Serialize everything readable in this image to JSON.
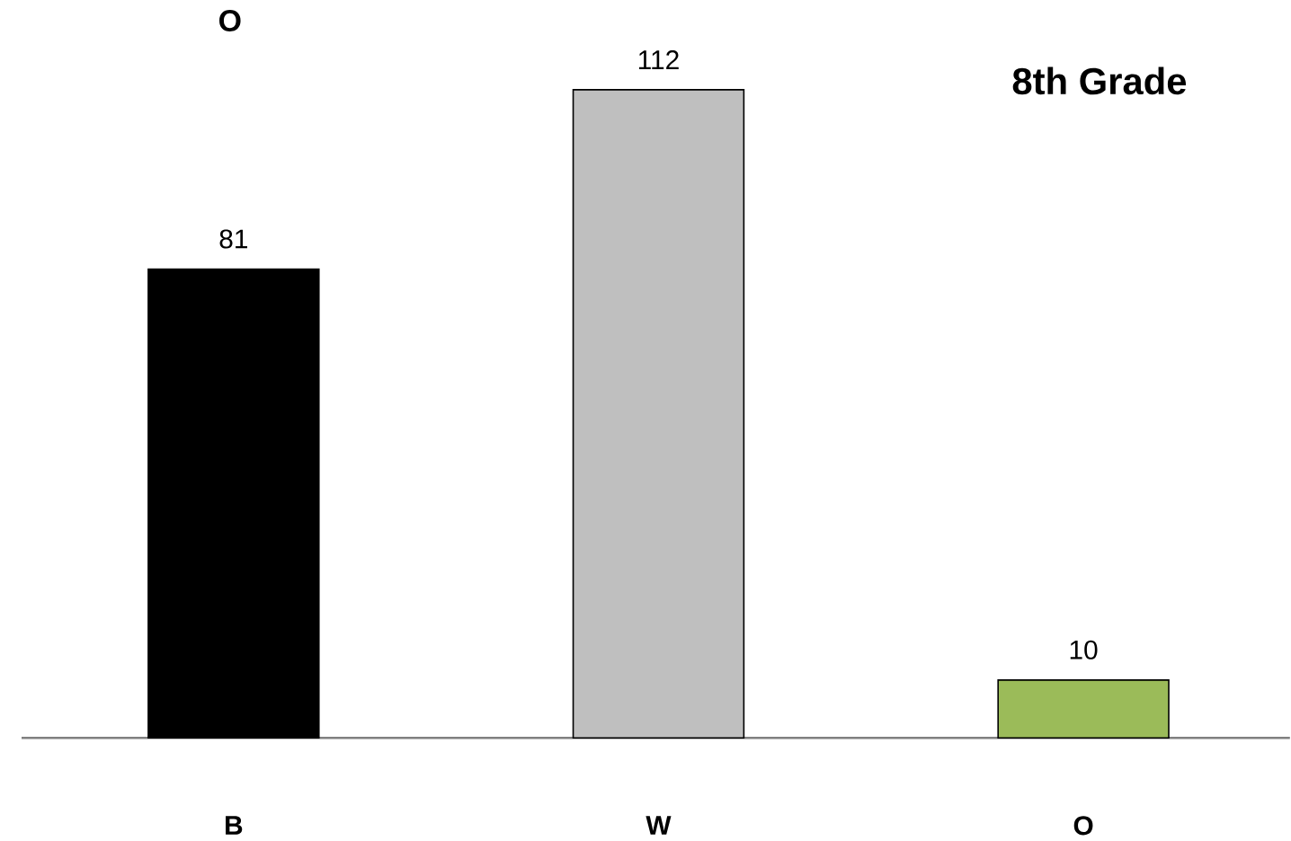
{
  "chart_data": {
    "type": "bar",
    "title": "8th Grade",
    "annotations": [
      "O"
    ],
    "categories": [
      "B",
      "W",
      "O"
    ],
    "values": [
      81,
      112,
      10
    ],
    "colors": [
      "#000000",
      "#bfbfbf",
      "#9bbb59"
    ],
    "data_labels": true
  }
}
